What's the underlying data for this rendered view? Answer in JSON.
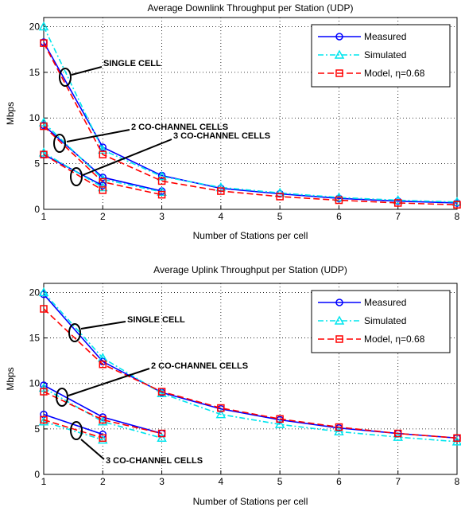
{
  "chart_data": [
    {
      "type": "line",
      "title": "Average Downlink Throughput per Station (UDP)",
      "xlabel": "Number of Stations per cell",
      "ylabel": "Mbps",
      "xlim": [
        1,
        8
      ],
      "ylim": [
        0,
        21
      ],
      "xticks": [
        "1",
        "2",
        "3",
        "4",
        "5",
        "6",
        "7",
        "8"
      ],
      "yticks": [
        "0",
        "5",
        "10",
        "15",
        "20"
      ],
      "grid": true,
      "legend_position": "top-right",
      "legend": [
        "Measured",
        "Simulated",
        "Model, η=0.68"
      ],
      "annotations": [
        {
          "text": "SINGLE CELL",
          "group": "single"
        },
        {
          "text": "2 CO-CHANNEL CELLS",
          "group": "two"
        },
        {
          "text": "3 CO-CHANNEL CELLS",
          "group": "three"
        }
      ],
      "series": [
        {
          "name": "Measured",
          "group": "single",
          "style": "measured",
          "x": [
            1,
            2,
            3,
            4,
            5,
            6,
            7,
            8
          ],
          "y": [
            18.3,
            6.8,
            3.7,
            2.3,
            1.7,
            1.2,
            0.9,
            0.7
          ]
        },
        {
          "name": "Simulated",
          "group": "single",
          "style": "simulated",
          "x": [
            1,
            2,
            3,
            4,
            5,
            6,
            7,
            8
          ],
          "y": [
            20.0,
            6.5,
            3.6,
            2.4,
            1.8,
            1.3,
            1.0,
            0.8
          ]
        },
        {
          "name": "Model, η=0.68",
          "group": "single",
          "style": "model",
          "x": [
            1,
            2,
            3,
            4,
            5,
            6,
            7,
            8
          ],
          "y": [
            18.2,
            6.0,
            3.1,
            2.0,
            1.4,
            1.0,
            0.7,
            0.5
          ]
        },
        {
          "name": "Measured",
          "group": "two",
          "style": "measured",
          "x": [
            1,
            2,
            3
          ],
          "y": [
            9.2,
            3.5,
            2.0
          ]
        },
        {
          "name": "Simulated",
          "group": "two",
          "style": "simulated",
          "x": [
            1,
            2,
            3
          ],
          "y": [
            9.5,
            3.3,
            1.9
          ]
        },
        {
          "name": "Model, η=0.68",
          "group": "two",
          "style": "model",
          "x": [
            1,
            2,
            3
          ],
          "y": [
            9.1,
            3.0,
            1.6
          ]
        },
        {
          "name": "Measured",
          "group": "three",
          "style": "measured",
          "x": [
            1,
            2
          ],
          "y": [
            6.0,
            2.6
          ]
        },
        {
          "name": "Simulated",
          "group": "three",
          "style": "simulated",
          "x": [
            1,
            2
          ],
          "y": [
            6.2,
            2.4
          ]
        },
        {
          "name": "Model, η=0.68",
          "group": "three",
          "style": "model",
          "x": [
            1,
            2
          ],
          "y": [
            6.0,
            2.1
          ]
        }
      ]
    },
    {
      "type": "line",
      "title": "Average Uplink Throughput per Station (UDP)",
      "xlabel": "Number of Stations per cell",
      "ylabel": "Mbps",
      "xlim": [
        1,
        8
      ],
      "ylim": [
        0,
        21
      ],
      "xticks": [
        "1",
        "2",
        "3",
        "4",
        "5",
        "6",
        "7",
        "8"
      ],
      "yticks": [
        "0",
        "5",
        "10",
        "15",
        "20"
      ],
      "grid": true,
      "legend_position": "top-right",
      "legend": [
        "Measured",
        "Simulated",
        "Model, η=0.68"
      ],
      "annotations": [
        {
          "text": "SINGLE CELL",
          "group": "single"
        },
        {
          "text": "2 CO-CHANNEL CELLS",
          "group": "two"
        },
        {
          "text": "3 CO-CHANNEL CELLS",
          "group": "three"
        }
      ],
      "series": [
        {
          "name": "Measured",
          "group": "single",
          "style": "measured",
          "x": [
            1,
            2,
            3,
            4,
            5,
            6,
            7,
            8
          ],
          "y": [
            19.8,
            12.4,
            9.0,
            7.2,
            6.0,
            5.1,
            4.5,
            4.0
          ]
        },
        {
          "name": "Simulated",
          "group": "single",
          "style": "simulated",
          "x": [
            1,
            2,
            3,
            4,
            5,
            6,
            7,
            8
          ],
          "y": [
            20.0,
            12.8,
            8.9,
            6.6,
            5.5,
            4.7,
            4.1,
            3.6
          ]
        },
        {
          "name": "Model, η=0.68",
          "group": "single",
          "style": "model",
          "x": [
            1,
            2,
            3,
            4,
            5,
            6,
            7,
            8
          ],
          "y": [
            18.2,
            12.1,
            9.1,
            7.3,
            6.1,
            5.2,
            4.5,
            4.0
          ]
        },
        {
          "name": "Measured",
          "group": "two",
          "style": "measured",
          "x": [
            1,
            2,
            3
          ],
          "y": [
            9.8,
            6.3,
            4.5
          ]
        },
        {
          "name": "Simulated",
          "group": "two",
          "style": "simulated",
          "x": [
            1,
            2,
            3
          ],
          "y": [
            9.5,
            5.8,
            4.0
          ]
        },
        {
          "name": "Model, η=0.68",
          "group": "two",
          "style": "model",
          "x": [
            1,
            2,
            3
          ],
          "y": [
            9.1,
            6.0,
            4.5
          ]
        },
        {
          "name": "Measured",
          "group": "three",
          "style": "measured",
          "x": [
            1,
            2
          ],
          "y": [
            6.6,
            4.4
          ]
        },
        {
          "name": "Simulated",
          "group": "three",
          "style": "simulated",
          "x": [
            1,
            2
          ],
          "y": [
            5.8,
            3.8
          ]
        },
        {
          "name": "Model, η=0.68",
          "group": "three",
          "style": "model",
          "x": [
            1,
            2
          ],
          "y": [
            6.0,
            4.0
          ]
        }
      ]
    }
  ],
  "styles": {
    "measured": {
      "color": "#0000ff",
      "dash": "",
      "marker": "circle"
    },
    "simulated": {
      "color": "#00e5ee",
      "dash": "7 3 2 3",
      "marker": "triangle"
    },
    "model": {
      "color": "#ff0000",
      "dash": "8 4",
      "marker": "square"
    }
  }
}
